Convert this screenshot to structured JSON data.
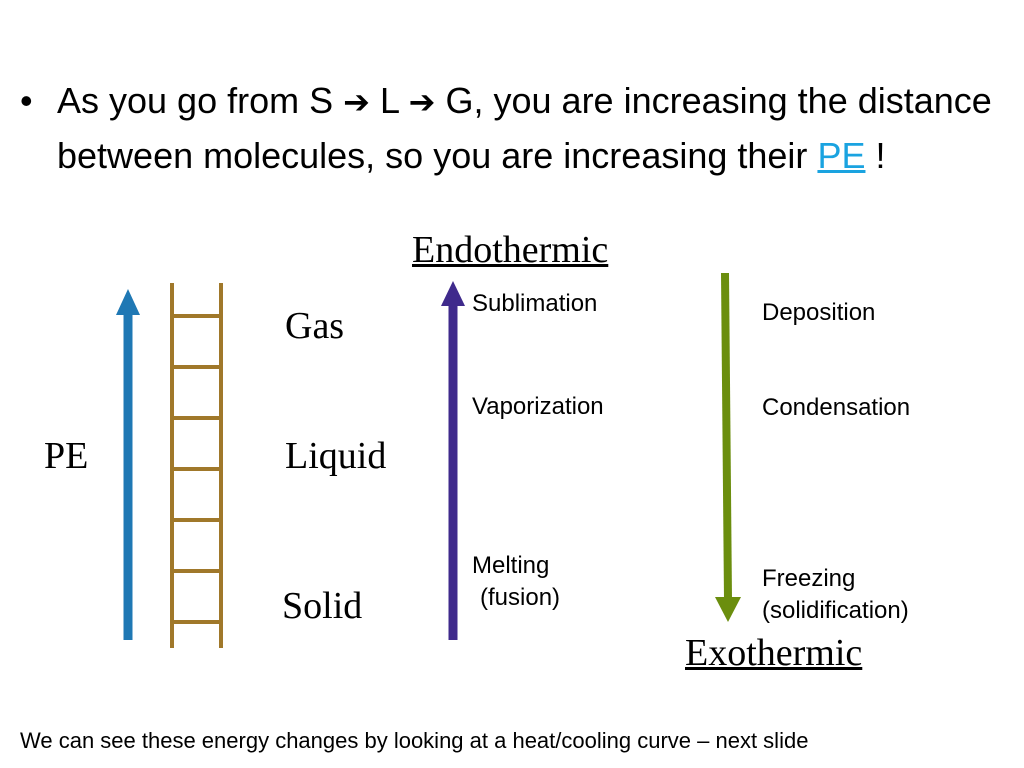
{
  "bullet": {
    "dot": "•",
    "part1": "As you go from S",
    "part2": "L",
    "part3": "G, you are increasing the distance between molecules, so you are increasing their",
    "pe_link": "PE",
    "end": "!",
    "arrow_icon": "right-arrow-icon"
  },
  "labels": {
    "pe": "PE",
    "gas": "Gas",
    "liquid": "Liquid",
    "solid": "Solid",
    "endothermic": "Endothermic",
    "exothermic": "Exothermic"
  },
  "endothermic_processes": {
    "sublimation": "Sublimation",
    "vaporization": "Vaporization",
    "melting_line1": "Melting",
    "melting_line2": "(fusion)"
  },
  "exothermic_processes": {
    "deposition": "Deposition",
    "condensation": "Condensation",
    "freezing_line1": "Freezing",
    "freezing_line2": "(solidification)"
  },
  "footer": "We can see these energy changes by looking at a heat/cooling curve – next slide",
  "colors": {
    "pe_arrow": "#1f78b4",
    "ladder": "#a0782a",
    "endo_arrow": "#3f2a8c",
    "exo_arrow": "#6b8e0e",
    "pe_link": "#1aa3e0"
  }
}
